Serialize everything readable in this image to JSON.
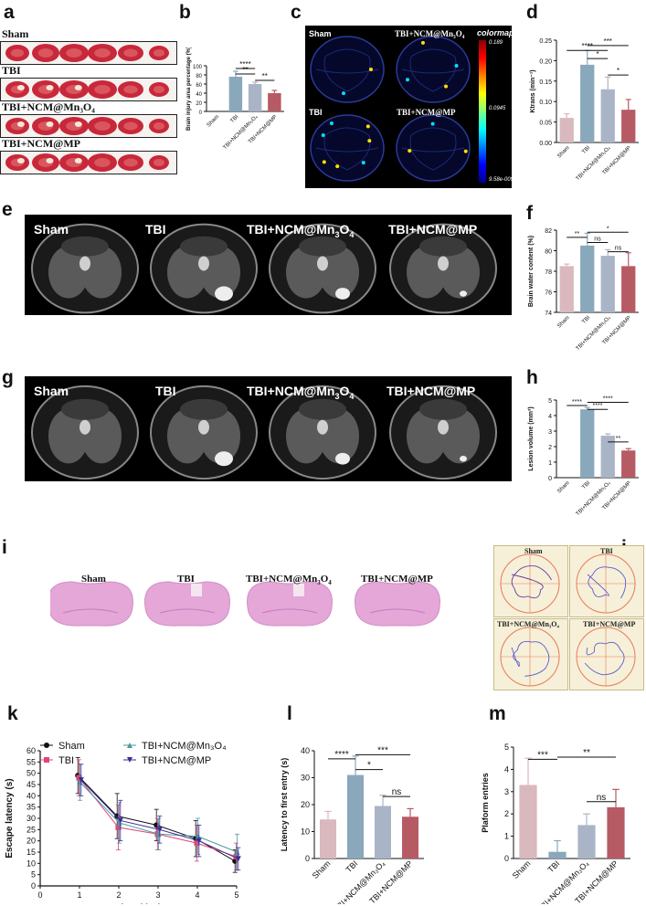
{
  "panels": {
    "a": {
      "label": "a",
      "rows": [
        "Sham",
        "TBI",
        "TBI+NCM@Mn₃O₄",
        "TBI+NCM@MP"
      ]
    },
    "b": {
      "label": "b",
      "chart_data": {
        "type": "bar",
        "categories": [
          "Sham",
          "TBI",
          "TBI+NCM@Mn₃O₄",
          "TBI+NCM@MP"
        ],
        "values": [
          0,
          76,
          60,
          40
        ],
        "errors": [
          0,
          12,
          4,
          6
        ],
        "ylabel": "Brain injury area percentage (%)",
        "ylim": [
          0,
          100
        ],
        "yticks": [
          0,
          20,
          40,
          60,
          80,
          100
        ],
        "significance": [
          "****",
          "**",
          "**"
        ],
        "colors": [
          "#d9b8be",
          "#8aa8bb",
          "#a9b5c6",
          "#b65a64"
        ]
      }
    },
    "c": {
      "label": "c",
      "groups": [
        "Sham",
        "TBI+NCM@Mn₃O₄",
        "TBI",
        "TBI+NCM@MP"
      ],
      "colormap_title": "colormap",
      "colormap_max": "0.189",
      "colormap_mid": "0.0945",
      "colormap_min": "9.58e-009"
    },
    "d": {
      "label": "d",
      "chart_data": {
        "type": "bar",
        "categories": [
          "Sham",
          "TBI",
          "TBI+NCM@Mn₃O₄",
          "TBI+NCM@MP"
        ],
        "values": [
          0.06,
          0.19,
          0.13,
          0.08
        ],
        "errors": [
          0.01,
          0.035,
          0.03,
          0.025
        ],
        "ylabel": "Ktrans (min⁻¹)",
        "ylim": [
          0,
          0.25
        ],
        "yticks": [
          "0.00",
          "0.05",
          "0.10",
          "0.15",
          "0.20",
          "0.25"
        ],
        "significance": [
          "****",
          "***",
          "*",
          "*"
        ],
        "colors": [
          "#d9b8be",
          "#8aa8bb",
          "#a9b5c6",
          "#b65a64"
        ]
      }
    },
    "e": {
      "label": "e",
      "groups": [
        "Sham",
        "TBI",
        "TBI+NCM@Mn₃O₄",
        "TBI+NCM@MP"
      ]
    },
    "f": {
      "label": "f",
      "chart_data": {
        "type": "bar",
        "categories": [
          "Sham",
          "TBI",
          "TBI+NCM@Mn₃O₄",
          "TBI+NCM@MP"
        ],
        "values": [
          78.5,
          80.5,
          79.5,
          78.5
        ],
        "errors": [
          0.2,
          1.2,
          0.6,
          1.3
        ],
        "ylabel": "Brain water content (%)",
        "ylim": [
          74,
          82
        ],
        "yticks": [
          74,
          76,
          78,
          80,
          82
        ],
        "significance": [
          "**",
          "*",
          "ns",
          "ns"
        ],
        "colors": [
          "#d9b8be",
          "#8aa8bb",
          "#a9b5c6",
          "#b65a64"
        ]
      }
    },
    "g": {
      "label": "g",
      "groups": [
        "Sham",
        "TBI",
        "TBI+NCM@Mn₃O₄",
        "TBI+NCM@MP"
      ]
    },
    "h": {
      "label": "h",
      "chart_data": {
        "type": "bar",
        "categories": [
          "Sham",
          "TBI",
          "TBI+NCM@Mn₃O₄",
          "TBI+NCM@MP"
        ],
        "values": [
          0,
          4.4,
          2.7,
          1.75
        ],
        "errors": [
          0,
          0.12,
          0.12,
          0.12
        ],
        "ylabel": "Lesion volume (mm³)",
        "ylim": [
          0,
          5
        ],
        "yticks": [
          0,
          1,
          2,
          3,
          4,
          5
        ],
        "significance": [
          "****",
          "****",
          "****",
          "**"
        ],
        "colors": [
          "#d9b8be",
          "#8aa8bb",
          "#a9b5c6",
          "#b65a64"
        ]
      }
    },
    "i": {
      "label": "i",
      "groups": [
        "Sham",
        "TBI",
        "TBI+NCM@Mn₃O₄",
        "TBI+NCM@MP"
      ]
    },
    "j": {
      "label": "j",
      "groups": [
        "Sham",
        "TBI",
        "TBI+NCM@Mn₃O₄",
        "TBI+NCM@MP"
      ]
    },
    "k": {
      "label": "k",
      "chart_data": {
        "type": "line",
        "x": [
          1,
          2,
          3,
          4,
          5
        ],
        "series": [
          {
            "name": "Sham",
            "values": [
              49,
              31,
              27,
              21,
              11
            ],
            "errors": [
              8,
              10,
              7,
              8,
              5
            ],
            "color": "#111111"
          },
          {
            "name": "TBI",
            "values": [
              48,
              26,
              23,
              19,
              13
            ],
            "errors": [
              8,
              10,
              7,
              8,
              6
            ],
            "color": "#e0457a"
          },
          {
            "name": "TBI+NCM@Mn₃O₄",
            "values": [
              46,
              28,
              23,
              22,
              15
            ],
            "errors": [
              8,
              9,
              7,
              8,
              8
            ],
            "color": "#4a9aa0"
          },
          {
            "name": "TBI+NCM@MP",
            "values": [
              47,
              29,
              25,
              20,
              12
            ],
            "errors": [
              7,
              9,
              6,
              7,
              5
            ],
            "color": "#3a2a9a"
          }
        ],
        "xlabel": "Time (day)",
        "ylabel": "Escape latency  (s)",
        "xlim": [
          0,
          5
        ],
        "ylim": [
          0,
          60
        ],
        "xticks": [
          0,
          1,
          2,
          3,
          4,
          5
        ],
        "yticks": [
          0,
          5,
          10,
          15,
          20,
          25,
          30,
          35,
          40,
          45,
          50,
          55,
          60
        ]
      }
    },
    "l": {
      "label": "l",
      "chart_data": {
        "type": "bar",
        "categories": [
          "Sham",
          "TBI",
          "TBI+NCM@Mn₃O₄",
          "TBI+NCM@MP"
        ],
        "values": [
          14.5,
          31,
          19.5,
          15.5
        ],
        "errors": [
          3,
          7,
          4,
          3
        ],
        "ylabel": "Latency to first entry  (s)",
        "ylim": [
          0,
          40
        ],
        "yticks": [
          0,
          10,
          20,
          30,
          40
        ],
        "significance": [
          "****",
          "***",
          "*",
          "ns"
        ],
        "colors": [
          "#d9b8be",
          "#8aa8bb",
          "#a9b5c6",
          "#b65a64"
        ]
      }
    },
    "m": {
      "label": "m",
      "chart_data": {
        "type": "bar",
        "categories": [
          "Sham",
          "TBI",
          "TBI+NCM@Mn₃O₄",
          "TBI+NCM@MP"
        ],
        "values": [
          3.3,
          0.3,
          1.5,
          2.3
        ],
        "errors": [
          1.2,
          0.5,
          0.5,
          0.8
        ],
        "ylabel": "Plaform entries",
        "ylim": [
          0,
          5
        ],
        "yticks": [
          0,
          1,
          2,
          3,
          4,
          5
        ],
        "significance": [
          "***",
          "**",
          "ns"
        ],
        "colors": [
          "#d9b8be",
          "#8aa8bb",
          "#a9b5c6",
          "#b65a64"
        ]
      }
    }
  }
}
